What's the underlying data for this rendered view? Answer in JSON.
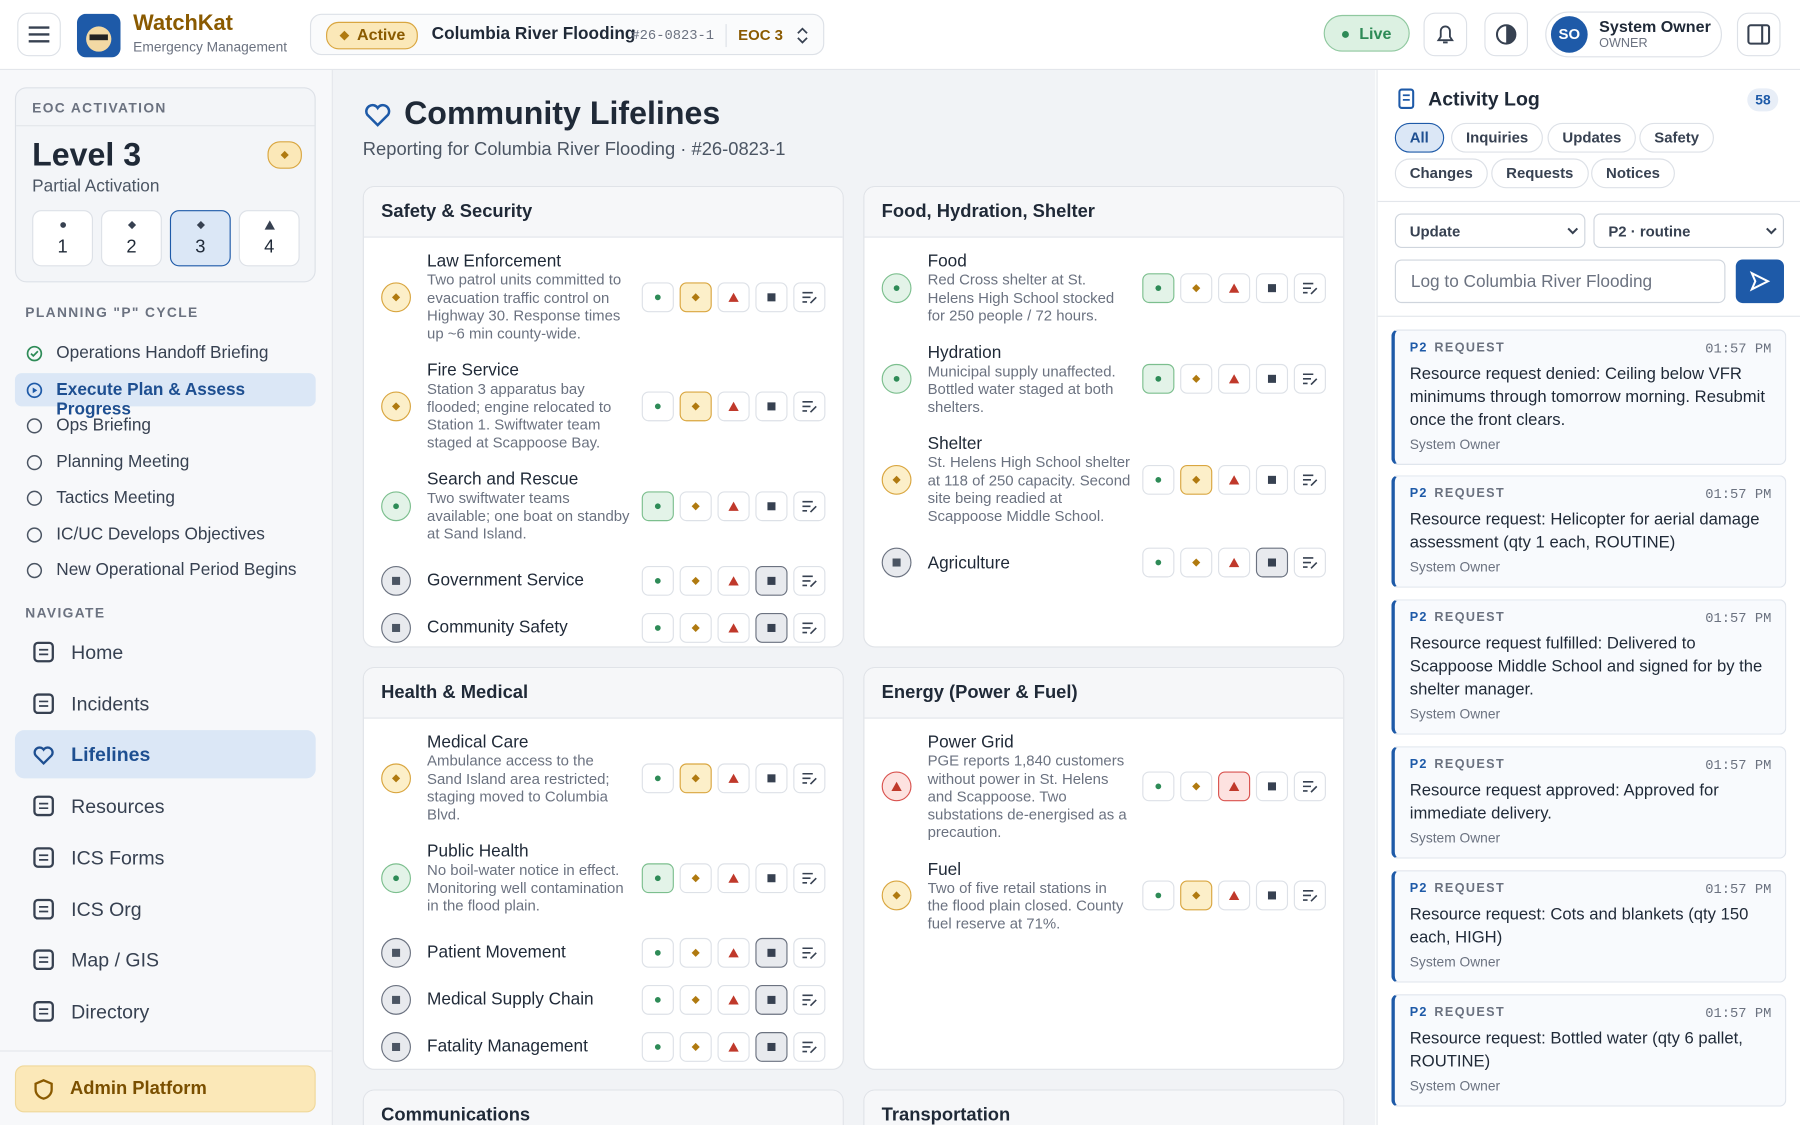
{
  "header": {
    "app_name": "WatchKat",
    "app_subtitle": "Emergency Management",
    "incident_status": "Active",
    "incident_name": "Columbia River Flooding",
    "incident_number": "#26-0823-1",
    "eoc_level": "EOC 3",
    "live": "Live",
    "user_initials": "SO",
    "user_name": "System Owner",
    "user_role": "OWNER"
  },
  "sidebar": {
    "eoc_heading": "EOC ACTIVATION",
    "level": "Level 3",
    "activation": "Partial Activation",
    "levels": [
      {
        "label": "1"
      },
      {
        "label": "2"
      },
      {
        "label": "3",
        "selected": true
      },
      {
        "label": "4"
      }
    ],
    "planning_heading": "PLANNING \"P\" CYCLE",
    "planning_steps": [
      {
        "label": "Operations Handoff Briefing",
        "state": "done"
      },
      {
        "label": "Execute Plan & Assess Progress",
        "state": "current"
      },
      {
        "label": "Ops Briefing",
        "state": "pending"
      },
      {
        "label": "Planning Meeting",
        "state": "pending"
      },
      {
        "label": "Tactics Meeting",
        "state": "pending"
      },
      {
        "label": "IC/UC Develops Objectives",
        "state": "pending"
      },
      {
        "label": "New Operational Period Begins",
        "state": "pending"
      }
    ],
    "nav_heading": "NAVIGATE",
    "nav": [
      {
        "label": "Home"
      },
      {
        "label": "Incidents"
      },
      {
        "label": "Lifelines",
        "active": true
      },
      {
        "label": "Resources"
      },
      {
        "label": "ICS Forms"
      },
      {
        "label": "ICS Org"
      },
      {
        "label": "Map / GIS"
      },
      {
        "label": "Directory"
      }
    ],
    "admin": "Admin Platform"
  },
  "main": {
    "title": "Community Lifelines",
    "subtitle": "Reporting for Columbia River Flooding · #26-0823-1",
    "panels": [
      {
        "title": "Safety & Security",
        "items": [
          {
            "name": "Law Enforcement",
            "note": "Two patrol units committed to evacuation traffic control on Highway 30. Response times up ~6 min county-wide.",
            "status": "yellow"
          },
          {
            "name": "Fire Service",
            "note": "Station 3 apparatus bay flooded; engine relocated to Station 1. Swiftwater team staged at Scappoose Bay.",
            "status": "yellow"
          },
          {
            "name": "Search and Rescue",
            "note": "Two swiftwater teams available; one boat on standby at Sand Island.",
            "status": "green"
          },
          {
            "name": "Government Service",
            "status": "gray"
          },
          {
            "name": "Community Safety",
            "status": "gray"
          }
        ]
      },
      {
        "title": "Food, Hydration, Shelter",
        "items": [
          {
            "name": "Food",
            "note": "Red Cross shelter at St. Helens High School stocked for 250 people / 72 hours.",
            "status": "green"
          },
          {
            "name": "Hydration",
            "note": "Municipal supply unaffected. Bottled water staged at both shelters.",
            "status": "green"
          },
          {
            "name": "Shelter",
            "note": "St. Helens High School shelter at 118 of 250 capacity. Second site being readied at Scappoose Middle School.",
            "status": "yellow"
          },
          {
            "name": "Agriculture",
            "status": "gray"
          }
        ]
      },
      {
        "title": "Health & Medical",
        "items": [
          {
            "name": "Medical Care",
            "note": "Ambulance access to the Sand Island area restricted; staging moved to Columbia Blvd.",
            "status": "yellow"
          },
          {
            "name": "Public Health",
            "note": "No boil-water notice in effect. Monitoring well contamination in the flood plain.",
            "status": "green"
          },
          {
            "name": "Patient Movement",
            "status": "gray"
          },
          {
            "name": "Medical Supply Chain",
            "status": "gray"
          },
          {
            "name": "Fatality Management",
            "status": "gray"
          }
        ]
      },
      {
        "title": "Energy (Power & Fuel)",
        "items": [
          {
            "name": "Power Grid",
            "note": "PGE reports 1,840 customers without power in St. Helens and Scappoose. Two substations de-energised as a precaution.",
            "status": "red"
          },
          {
            "name": "Fuel",
            "note": "Two of five retail stations in the flood plain closed. County fuel reserve at 71%.",
            "status": "yellow"
          }
        ]
      },
      {
        "title": "Communications",
        "items": []
      },
      {
        "title": "Transportation",
        "items": []
      }
    ]
  },
  "activity": {
    "title": "Activity Log",
    "count": 58,
    "filters": [
      {
        "label": "All",
        "active": true
      },
      {
        "label": "Inquiries"
      },
      {
        "label": "Updates"
      },
      {
        "label": "Safety"
      },
      {
        "label": "Changes"
      },
      {
        "label": "Requests"
      },
      {
        "label": "Notices"
      }
    ],
    "entry_type": "Update",
    "priority": "P2 · routine",
    "input_placeholder": "Log to Columbia River Flooding",
    "entries": [
      {
        "priority": "P2",
        "kind": "REQUEST",
        "time": "01:57 PM",
        "text": "Resource request denied: Ceiling below VFR minimums through tomorrow morning. Resubmit once the front clears.",
        "author": "System Owner"
      },
      {
        "priority": "P2",
        "kind": "REQUEST",
        "time": "01:57 PM",
        "text": "Resource request: Helicopter for aerial damage assessment (qty 1 each, ROUTINE)",
        "author": "System Owner"
      },
      {
        "priority": "P2",
        "kind": "REQUEST",
        "time": "01:57 PM",
        "text": "Resource request fulfilled: Delivered to Scappoose Middle School and signed for by the shelter manager.",
        "author": "System Owner"
      },
      {
        "priority": "P2",
        "kind": "REQUEST",
        "time": "01:57 PM",
        "text": "Resource request approved: Approved for immediate delivery.",
        "author": "System Owner"
      },
      {
        "priority": "P2",
        "kind": "REQUEST",
        "time": "01:57 PM",
        "text": "Resource request: Cots and blankets (qty 150 each, HIGH)",
        "author": "System Owner"
      },
      {
        "priority": "P2",
        "kind": "REQUEST",
        "time": "01:57 PM",
        "text": "Resource request: Bottled water (qty 6 pallet, ROUTINE)",
        "author": "System Owner"
      }
    ]
  }
}
